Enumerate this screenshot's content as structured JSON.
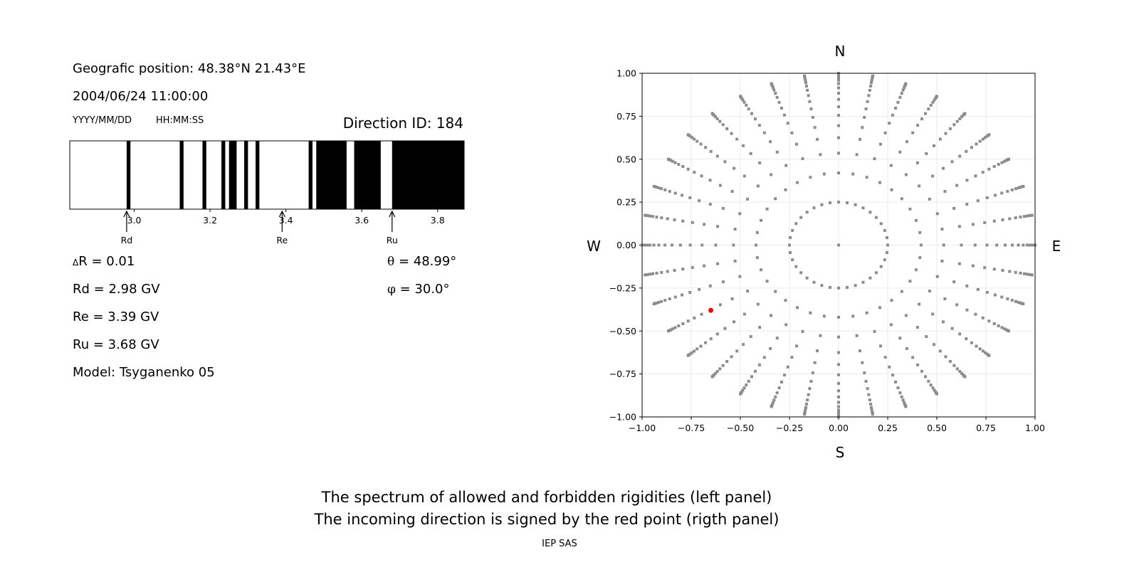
{
  "info": {
    "position": "Geografic position: 48.38°N 21.43°E",
    "datetime": "2004/06/24 11:00:00",
    "date_format": "YYYY/MM/DD",
    "time_format": "HH:MM:SS",
    "direction_id": "Direction ID: 184",
    "delta_r": "R = 0.01",
    "delta_symbol": "Δ",
    "rd": "Rd = 2.98 GV",
    "re": "Re = 3.39 GV",
    "ru": "Ru = 3.68 GV",
    "model": "Model: Tsyganenko 05",
    "theta_symbol": "θ",
    "theta": " = 48.99°",
    "phi_symbol": "φ",
    "phi": " = 30.0°"
  },
  "captions": {
    "line1": "The spectrum of allowed and forbidden rigidities (left panel)",
    "line2": "The incoming direction is signed by the red point (rigth panel)",
    "credit": "IEP SAS"
  },
  "chart_data": [
    {
      "type": "bar",
      "description_label": "rigidity spectrum",
      "xlim": [
        2.83,
        3.87
      ],
      "xticks": [
        "3.0",
        "3.2",
        "3.4",
        "3.6",
        "3.8"
      ],
      "xtick_values": [
        3.0,
        3.2,
        3.4,
        3.6,
        3.8
      ],
      "allowed_color": "#000000",
      "forbidden_color": "#ffffff",
      "allowed_bands": [
        [
          2.98,
          2.99
        ],
        [
          3.12,
          3.13
        ],
        [
          3.18,
          3.19
        ],
        [
          3.23,
          3.24
        ],
        [
          3.25,
          3.27
        ],
        [
          3.29,
          3.3
        ],
        [
          3.32,
          3.33
        ],
        [
          3.46,
          3.47
        ],
        [
          3.48,
          3.56
        ],
        [
          3.58,
          3.65
        ],
        [
          3.68,
          3.87
        ]
      ],
      "markers": [
        {
          "label": "Rd",
          "value": 2.98
        },
        {
          "label": "Re",
          "value": 3.39
        },
        {
          "label": "Ru",
          "value": 3.68
        }
      ]
    },
    {
      "type": "scatter",
      "xlim": [
        -1.0,
        1.0
      ],
      "ylim": [
        -1.0,
        1.0
      ],
      "grid": true,
      "xticks": [
        "−1.00",
        "−0.75",
        "−0.50",
        "−0.25",
        "0.00",
        "0.25",
        "0.50",
        "0.75",
        "1.00"
      ],
      "yticks": [
        "−1.00",
        "−0.75",
        "−0.50",
        "−0.25",
        "0.00",
        "0.25",
        "0.50",
        "0.75",
        "1.00"
      ],
      "tick_values": [
        -1.0,
        -0.75,
        -0.5,
        -0.25,
        0.0,
        0.25,
        0.5,
        0.75,
        1.0
      ],
      "compass": {
        "north": "N",
        "south": "S",
        "west": "W",
        "east": "E"
      },
      "grid_points": {
        "color": "#8c8c8c",
        "azimuth_step_deg": 10,
        "radii": [
          0.25,
          0.42,
          0.535,
          0.625,
          0.695,
          0.755,
          0.805,
          0.848,
          0.884,
          0.915,
          0.94,
          0.96,
          0.975,
          0.987,
          0.995,
          1.0
        ],
        "center": [
          0,
          0
        ]
      },
      "highlight_point": {
        "x": -0.65,
        "y": -0.38,
        "color": "#ff0000"
      }
    }
  ]
}
